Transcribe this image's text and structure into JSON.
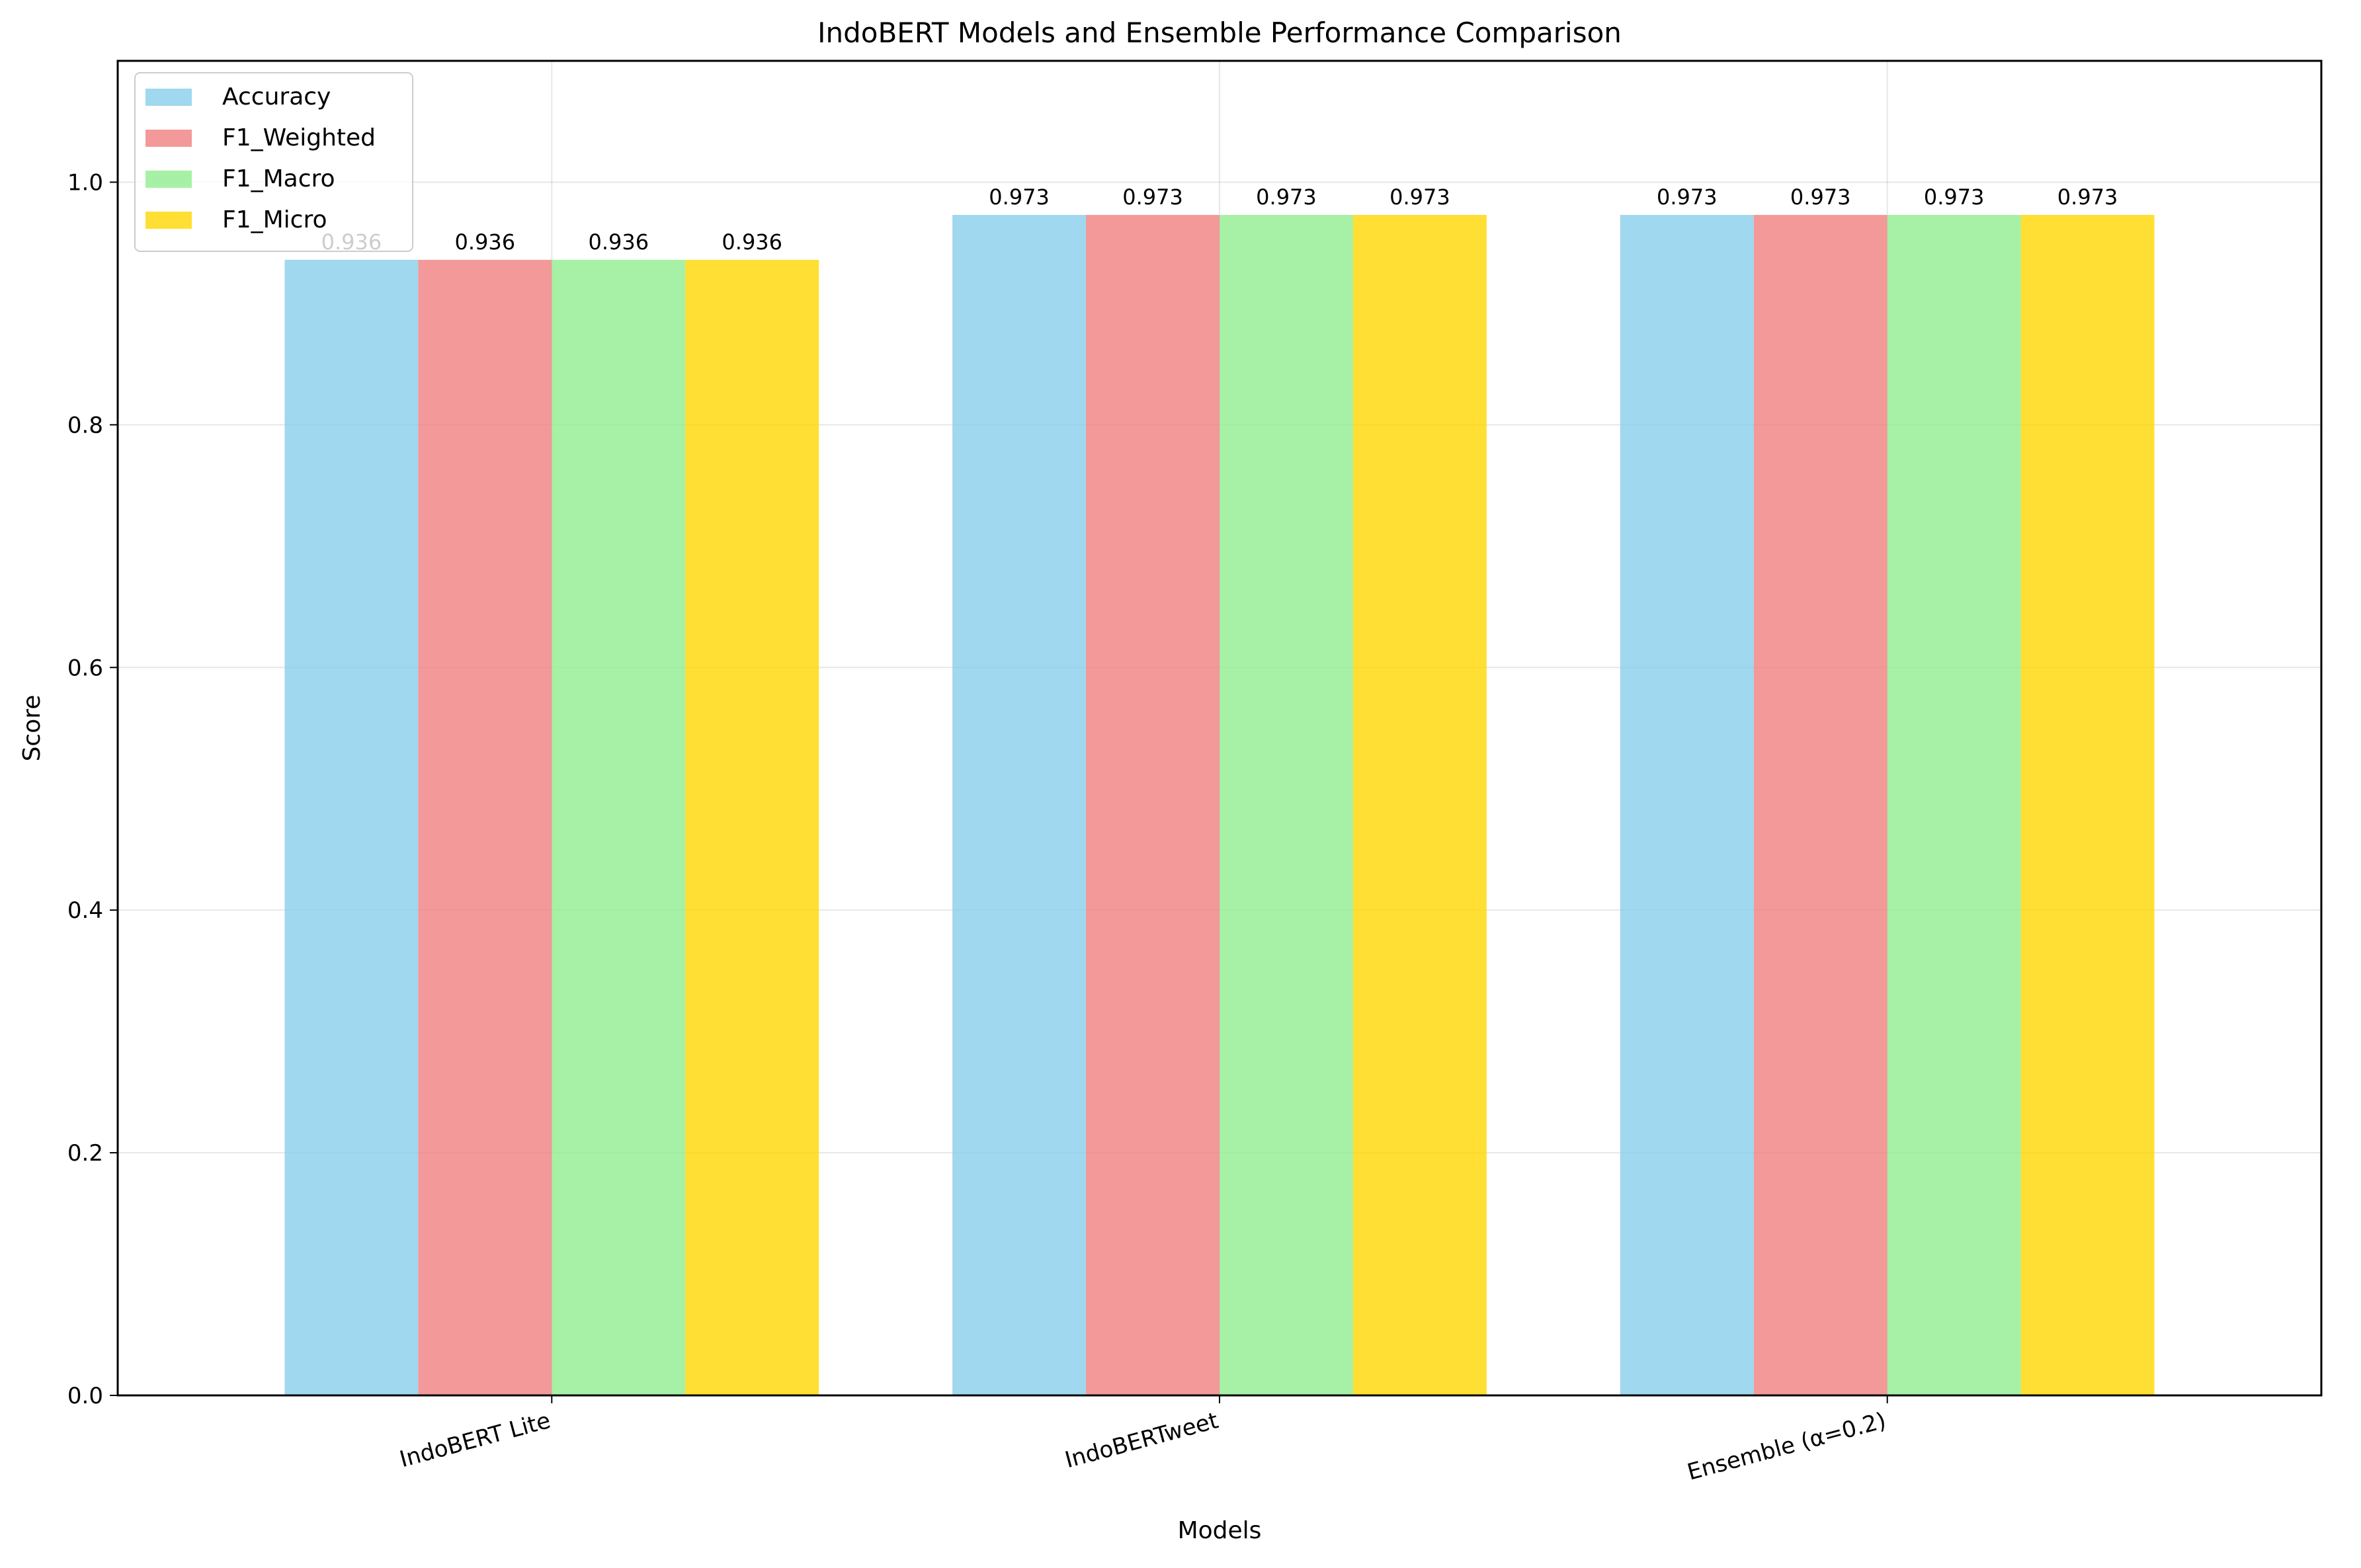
{
  "chart_data": {
    "type": "bar",
    "title": "IndoBERT Models and Ensemble Performance Comparison",
    "xlabel": "Models",
    "ylabel": "Score",
    "ylim": [
      0,
      1.1
    ],
    "yticks": [
      "0.0",
      "0.2",
      "0.4",
      "0.6",
      "0.8",
      "1.0"
    ],
    "ytick_values": [
      0,
      0.2,
      0.4,
      0.6,
      0.8,
      1.0
    ],
    "categories": [
      "IndoBERT Lite",
      "IndoBERTweet",
      "Ensemble (α=0.2)"
    ],
    "series": [
      {
        "name": "Accuracy",
        "color": "#87ceeb",
        "values": [
          0.936,
          0.973,
          0.973
        ],
        "labels": [
          "0.936",
          "0.973",
          "0.973"
        ]
      },
      {
        "name": "F1_Weighted",
        "color": "#f08080",
        "values": [
          0.936,
          0.973,
          0.973
        ],
        "labels": [
          "0.936",
          "0.973",
          "0.973"
        ]
      },
      {
        "name": "F1_Macro",
        "color": "#90ee90",
        "values": [
          0.936,
          0.973,
          0.973
        ],
        "labels": [
          "0.936",
          "0.973",
          "0.973"
        ]
      },
      {
        "name": "F1_Micro",
        "color": "#ffd700",
        "values": [
          0.936,
          0.973,
          0.973
        ],
        "labels": [
          "0.936",
          "0.973",
          "0.973"
        ]
      }
    ],
    "bar_opacity": 0.8,
    "grid": true,
    "legend_position": "top-left",
    "xtick_rotation": "slanted"
  }
}
